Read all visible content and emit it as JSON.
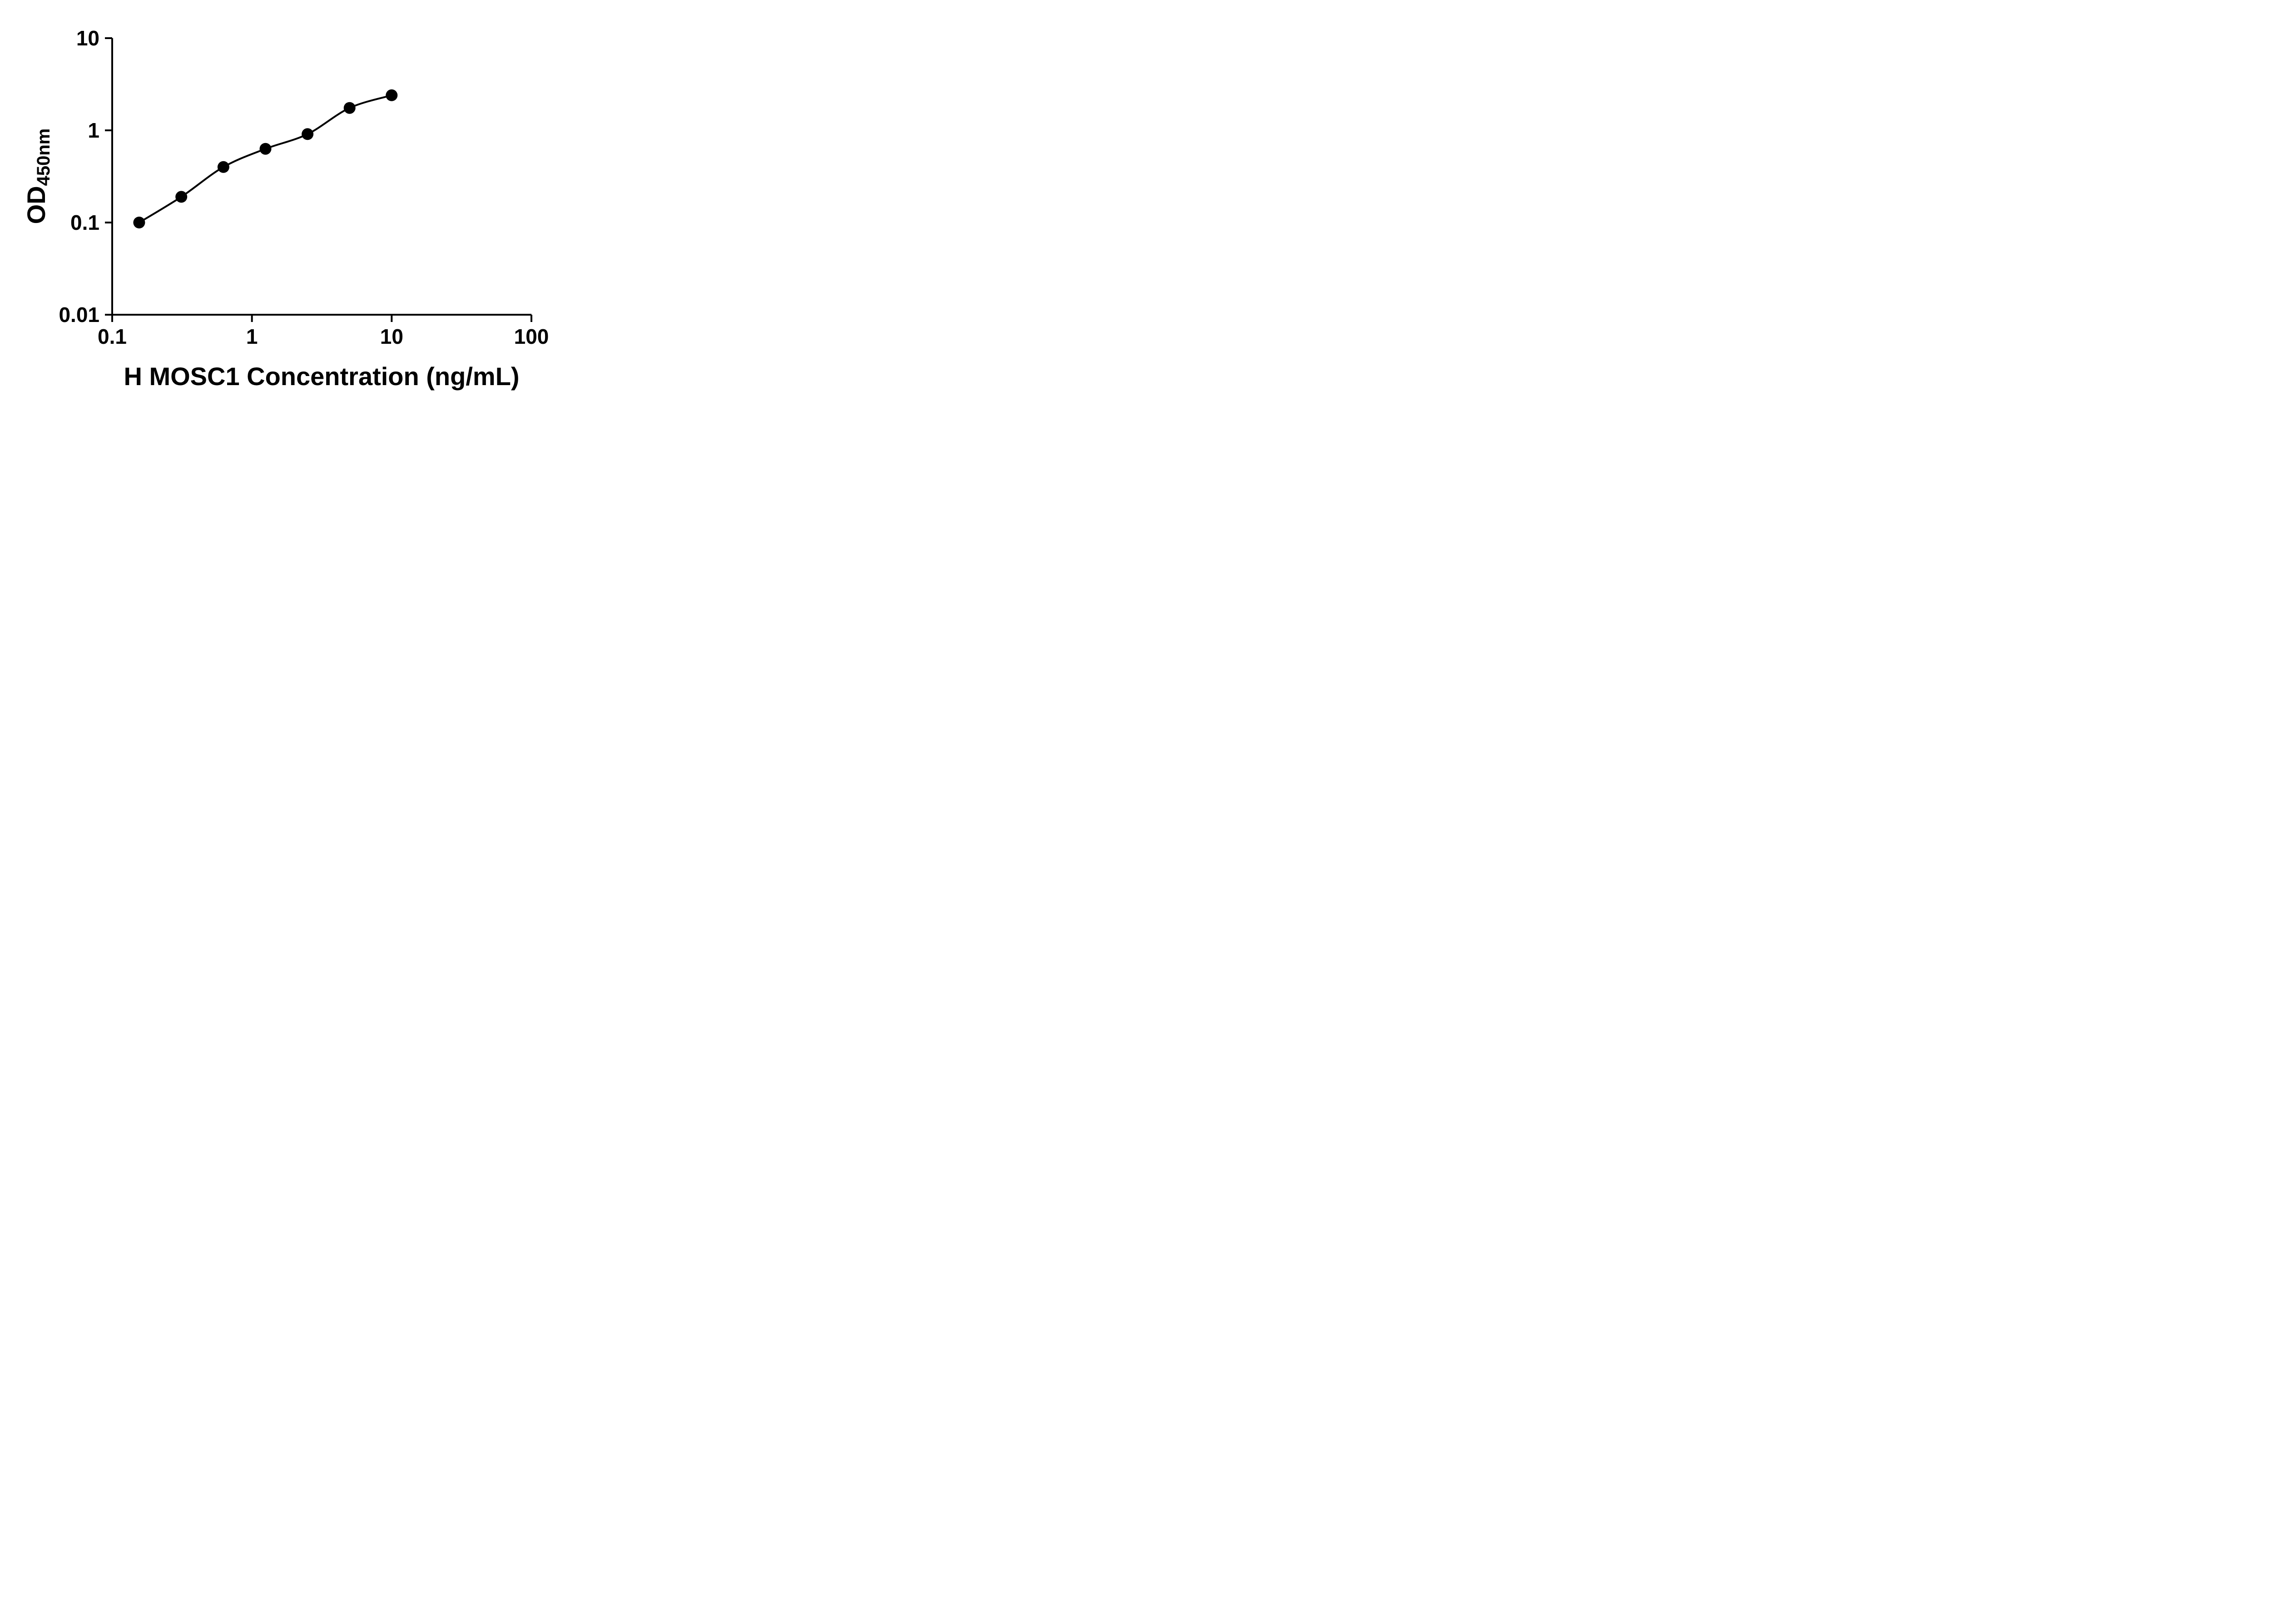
{
  "figure": {
    "background_color": "#ffffff",
    "ink_color": "#000000"
  },
  "chart_data": {
    "type": "scatter",
    "title": "",
    "xlabel": "H MOSC1 Concentration (ng/mL)",
    "ylabel": "OD",
    "ylabel_subscript": "450nm",
    "x_scale": "log",
    "y_scale": "log",
    "xlim": [
      0.1,
      100
    ],
    "ylim": [
      0.01,
      10
    ],
    "x_ticks": [
      0.1,
      1,
      10,
      100
    ],
    "x_tick_labels": [
      "0.1",
      "1",
      "10",
      "100"
    ],
    "y_ticks": [
      10,
      1,
      0.1,
      0.01
    ],
    "y_tick_labels": [
      "10",
      "1",
      "0.1",
      "0.01"
    ],
    "grid": false,
    "legend": "none",
    "marker_color": "#000000",
    "line_color": "#000000",
    "curve_style": "smooth-fit-through-points",
    "x": [
      0.156,
      0.3125,
      0.625,
      1.25,
      2.5,
      5,
      10
    ],
    "y": [
      0.1,
      0.19,
      0.4,
      0.63,
      0.91,
      1.75,
      2.4
    ]
  }
}
